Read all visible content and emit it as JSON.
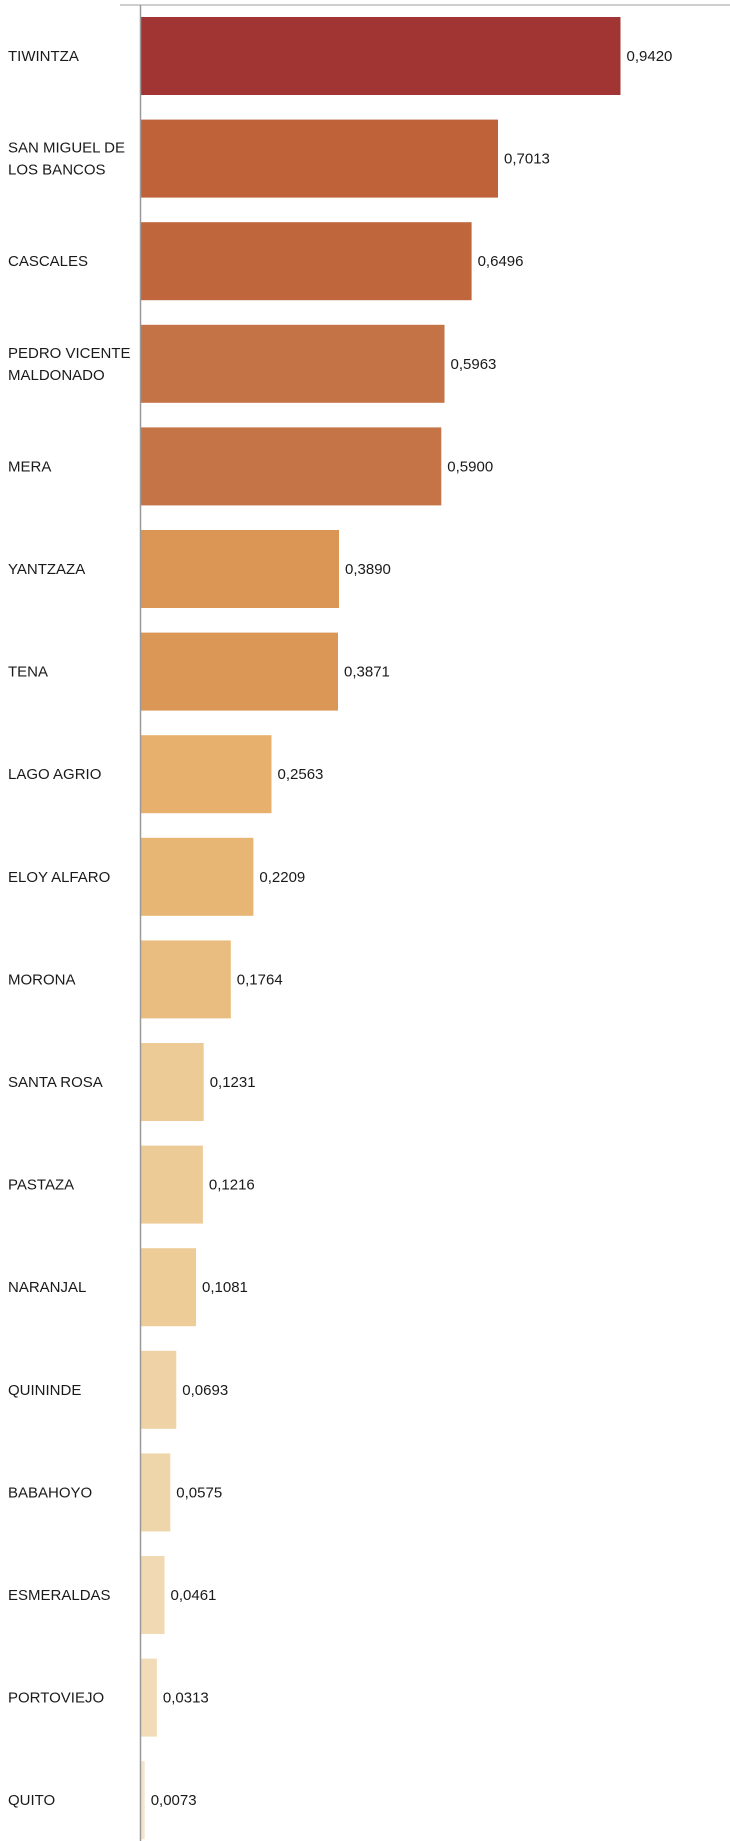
{
  "chart_data": {
    "type": "bar",
    "orientation": "horizontal",
    "categories": [
      "TIWINTZA",
      "SAN MIGUEL DE LOS BANCOS",
      "CASCALES",
      "PEDRO VICENTE MALDONADO",
      "MERA",
      "YANTZAZA",
      "TENA",
      "LAGO AGRIO",
      "ELOY ALFARO",
      "MORONA",
      "SANTA ROSA",
      "PASTAZA",
      "NARANJAL",
      "QUININDE",
      "BABAHOYO",
      "ESMERALDAS",
      "PORTOVIEJO",
      "QUITO"
    ],
    "category_lines": [
      [
        "TIWINTZA"
      ],
      [
        "SAN MIGUEL DE",
        "LOS BANCOS"
      ],
      [
        "CASCALES"
      ],
      [
        "PEDRO VICENTE",
        "MALDONADO"
      ],
      [
        "MERA"
      ],
      [
        "YANTZAZA"
      ],
      [
        "TENA"
      ],
      [
        "LAGO AGRIO"
      ],
      [
        "ELOY ALFARO"
      ],
      [
        "MORONA"
      ],
      [
        "SANTA ROSA"
      ],
      [
        "PASTAZA"
      ],
      [
        "NARANJAL"
      ],
      [
        "QUININDE"
      ],
      [
        "BABAHOYO"
      ],
      [
        "ESMERALDAS"
      ],
      [
        "PORTOVIEJO"
      ],
      [
        "QUITO"
      ]
    ],
    "values": [
      0.942,
      0.7013,
      0.6496,
      0.5963,
      0.59,
      0.389,
      0.3871,
      0.2563,
      0.2209,
      0.1764,
      0.1231,
      0.1216,
      0.1081,
      0.0693,
      0.0575,
      0.0461,
      0.0313,
      0.0073
    ],
    "value_labels": [
      "0,9420",
      "0,7013",
      "0,6496",
      "0,5963",
      "0,5900",
      "0,3890",
      "0,3871",
      "0,2563",
      "0,2209",
      "0,1764",
      "0,1231",
      "0,1216",
      "0,1081",
      "0,0693",
      "0,0575",
      "0,0461",
      "0,0313",
      "0,0073"
    ],
    "colors": [
      "#a03533",
      "#bf623a",
      "#c0663d",
      "#c37346",
      "#c47446",
      "#db9656",
      "#db9756",
      "#e7b06d",
      "#e8b674",
      "#e9bd80",
      "#eccb97",
      "#eccb97",
      "#edcc98",
      "#efd3a6",
      "#efd5aa",
      "#f0d9b3",
      "#f1dcb7",
      "#f4e5cc"
    ],
    "xlim": [
      0,
      1.0
    ],
    "title": "",
    "xlabel": "",
    "ylabel": "",
    "grid": false,
    "legend": "none"
  }
}
